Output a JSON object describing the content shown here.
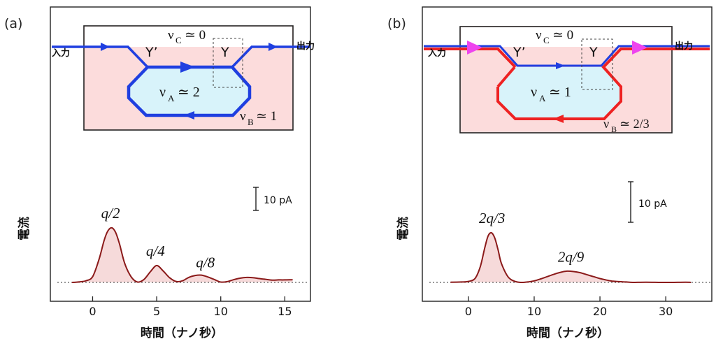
{
  "figure": {
    "panel_a": {
      "tag": "(a)",
      "inset": {
        "input_label": "入力",
        "output_label": "出力",
        "y_prime": "Y’",
        "y": "Y",
        "nu_c": "ν",
        "nu_c_sub": "C",
        "nu_c_rel": "≃ 0",
        "nu_a": "ν",
        "nu_a_sub": "A",
        "nu_a_rel": "≃ 2",
        "nu_b": "ν",
        "nu_b_sub": "B",
        "nu_b_rel": "≃ 1"
      },
      "scale_bar_label": "10 pA"
    },
    "panel_b": {
      "tag": "(b)",
      "inset": {
        "input_label": "入力",
        "output_label": "出力",
        "y_prime": "Y’",
        "y": "Y",
        "nu_c": "ν",
        "nu_c_sub": "C",
        "nu_c_rel": "≃ 0",
        "nu_a": "ν",
        "nu_a_sub": "A",
        "nu_a_rel": "≃ 1",
        "nu_b": "ν",
        "nu_b_sub": "B",
        "nu_b_rel": "≃ 2/3"
      },
      "scale_bar_label": "10 pA"
    }
  },
  "colors": {
    "trace": "#8b1a1a",
    "trace_fill": "#f6dada",
    "region_outer": "#fcdcdc",
    "region_inner": "#d8f3fa",
    "edge_blue": "#1f3fe0",
    "edge_red": "#ee2222",
    "marker_magenta": "#ee44ee"
  },
  "chart_data": [
    {
      "type": "line",
      "xlabel": "時間（ナノ秒）",
      "ylabel": "電流",
      "xlim": [
        -3.3,
        17
      ],
      "xticks": [
        0,
        5,
        10,
        15
      ],
      "yunit": "pA",
      "baseline": 0,
      "scale_bar_pA": 10,
      "series": [
        {
          "x": [
            -1.6,
            -1.0,
            -0.5,
            0.0,
            0.5,
            0.9,
            1.2,
            1.5,
            1.8,
            2.1,
            2.5,
            3.0,
            3.5,
            4.0,
            4.5,
            5.0,
            5.5,
            6.0,
            6.5,
            7.0,
            7.5,
            8.0,
            8.5,
            9.0,
            9.5,
            10.0,
            10.5,
            11.0,
            11.5,
            12.0,
            12.5,
            13.0,
            13.5,
            14.0,
            14.5,
            15.0,
            15.6
          ],
          "y": [
            0.0,
            0.3,
            0.9,
            3.0,
            12.0,
            22.0,
            27.0,
            28.5,
            26.0,
            20.0,
            10.0,
            3.0,
            0.2,
            1.5,
            5.5,
            8.8,
            6.0,
            2.5,
            0.5,
            0.8,
            2.6,
            3.6,
            3.8,
            2.8,
            1.5,
            0.2,
            0.4,
            1.4,
            2.2,
            2.6,
            2.5,
            2.0,
            1.6,
            1.2,
            1.3,
            1.3,
            1.4
          ]
        }
      ],
      "annotations": [
        {
          "text": "q/2",
          "x": 1.4
        },
        {
          "text": "q/4",
          "x": 4.9
        },
        {
          "text": "q/8",
          "x": 8.8
        }
      ]
    },
    {
      "type": "line",
      "xlabel": "時間（ナノ秒）",
      "ylabel": "電流",
      "xlim": [
        -7,
        37
      ],
      "xticks": [
        0,
        10,
        20,
        30
      ],
      "yunit": "pA",
      "baseline": 0,
      "scale_bar_pA": 10,
      "series": [
        {
          "x": [
            -2.7,
            -1.0,
            0.0,
            1.0,
            1.8,
            2.5,
            3.0,
            3.5,
            4.0,
            4.5,
            5.0,
            6.0,
            7.0,
            8.0,
            9.0,
            10.0,
            11.0,
            12.0,
            13.0,
            14.0,
            15.0,
            16.0,
            17.0,
            18.0,
            19.0,
            20.0,
            21.0,
            22.0,
            23.0,
            24.0,
            25.0,
            27.0,
            30.0,
            33.0,
            33.8
          ],
          "y": [
            0.1,
            0.2,
            0.5,
            2.0,
            8.0,
            18.0,
            24.0,
            25.6,
            23.0,
            17.0,
            10.0,
            3.0,
            0.6,
            0.0,
            0.2,
            0.8,
            1.8,
            3.0,
            4.2,
            5.2,
            5.8,
            5.6,
            5.0,
            4.0,
            3.0,
            2.0,
            1.2,
            0.6,
            0.4,
            0.2,
            0.0,
            0.1,
            0.0,
            0.1,
            0.0
          ]
        }
      ],
      "annotations": [
        {
          "text": "2q/3",
          "x": 3.6
        },
        {
          "text": "2q/9",
          "x": 15.6
        }
      ]
    }
  ]
}
